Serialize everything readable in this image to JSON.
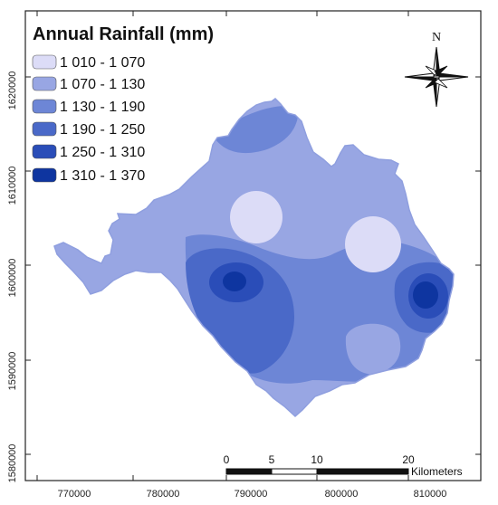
{
  "map": {
    "legend": {
      "title": "Annual Rainfall (mm)",
      "classes": [
        {
          "label": "1 010 - 1 070",
          "color": "#dcdcf7"
        },
        {
          "label": "1 070 - 1 130",
          "color": "#98a6e3"
        },
        {
          "label": "1 130 - 1 190",
          "color": "#6d86d6"
        },
        {
          "label": "1 190 - 1 250",
          "color": "#4a69c8"
        },
        {
          "label": "1 250 - 1 310",
          "color": "#2a4db8"
        },
        {
          "label": "1 310 - 1 370",
          "color": "#0e35a0"
        }
      ]
    },
    "x_ticks": [
      "770000",
      "780000",
      "790000",
      "800000",
      "810000"
    ],
    "y_ticks": [
      "1620000",
      "1610000",
      "1600000",
      "1590000",
      "1580000"
    ],
    "north_arrow": {
      "label": "N",
      "icon": "north-arrow-icon"
    },
    "scale_bar": {
      "ticks": [
        "0",
        "5",
        "10",
        "20"
      ],
      "unit": "Kilometers"
    },
    "colors": {
      "frame": "#222222",
      "boundary": "#8f9fdf"
    }
  }
}
